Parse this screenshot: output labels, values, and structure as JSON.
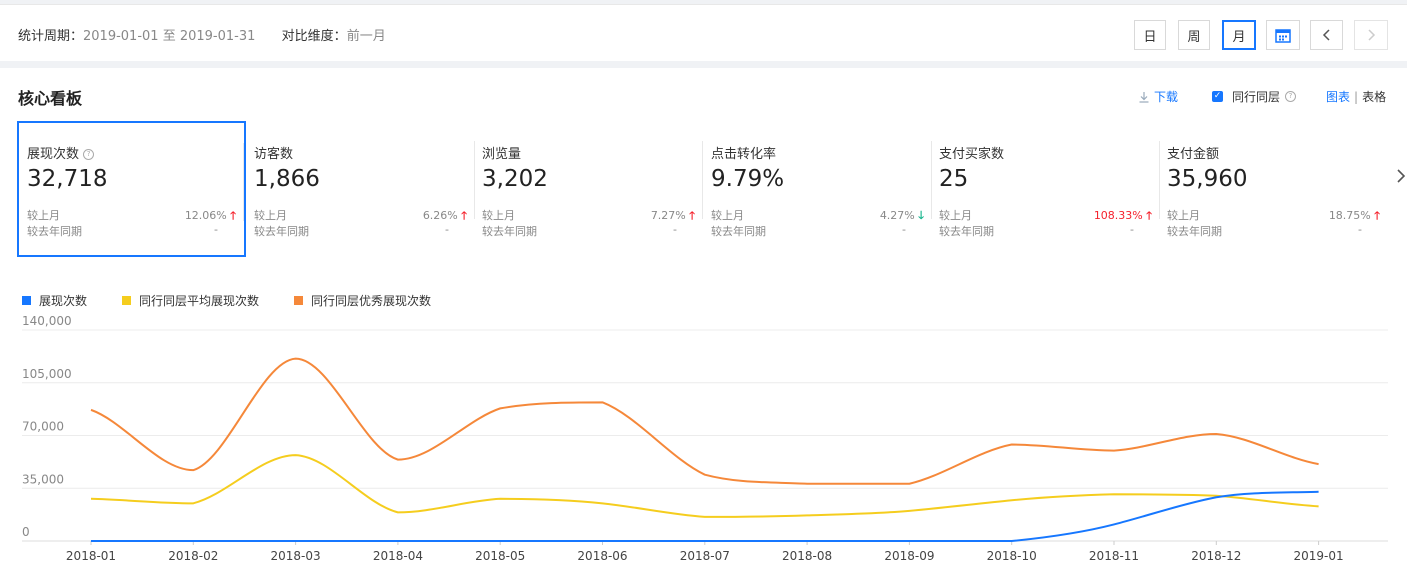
{
  "header": {
    "period_label": "统计周期：",
    "period_value": "2019-01-01 至 2019-01-31",
    "compare_label": "对比维度：",
    "compare_value": "前一月",
    "day_label": "日",
    "week_label": "周",
    "month_label": "月",
    "active_granularity": "月"
  },
  "board": {
    "title": "核心看板",
    "download_label": "下载",
    "peer_label": "同行同层",
    "peer_checked": true,
    "view_chart_label": "图表",
    "view_table_label": "表格",
    "view_separator": "|"
  },
  "metrics": [
    {
      "name": "展现次数",
      "value": "32,718",
      "help": true,
      "mom_label": "较上月",
      "mom_pct": "12.06%",
      "trend": "up",
      "yoy_label": "较去年同期",
      "yoy_val": "-"
    },
    {
      "name": "访客数",
      "value": "1,866",
      "mom_label": "较上月",
      "mom_pct": "6.26%",
      "trend": "up",
      "yoy_label": "较去年同期",
      "yoy_val": "-"
    },
    {
      "name": "浏览量",
      "value": "3,202",
      "mom_label": "较上月",
      "mom_pct": "7.27%",
      "trend": "up",
      "yoy_label": "较去年同期",
      "yoy_val": "-"
    },
    {
      "name": "点击转化率",
      "value": "9.79%",
      "mom_label": "较上月",
      "mom_pct": "4.27%",
      "trend": "down",
      "yoy_label": "较去年同期",
      "yoy_val": "-"
    },
    {
      "name": "支付买家数",
      "value": "25",
      "mom_label": "较上月",
      "mom_pct": "108.33%",
      "trend": "up",
      "highlight": true,
      "yoy_label": "较去年同期",
      "yoy_val": "-"
    },
    {
      "name": "支付金额",
      "value": "35,960",
      "mom_label": "较上月",
      "mom_pct": "18.75%",
      "trend": "up",
      "yoy_label": "较去年同期",
      "yoy_val": "-"
    }
  ],
  "colors": {
    "accent": "#1677ff",
    "up": "#f5222d",
    "down": "#13b38b",
    "series_own": "#1677ff",
    "series_avg": "#f5cd1e",
    "series_top": "#f5883a"
  },
  "chart_data": {
    "type": "line",
    "x": [
      "2018-01",
      "2018-02",
      "2018-03",
      "2018-04",
      "2018-05",
      "2018-06",
      "2018-07",
      "2018-08",
      "2018-09",
      "2018-10",
      "2018-11",
      "2018-12",
      "2019-01"
    ],
    "y_ticks": [
      "0",
      "35,000",
      "70,000",
      "105,000",
      "140,000"
    ],
    "ylim": [
      0,
      140000
    ],
    "grid": true,
    "legend_position": "top-left",
    "series": [
      {
        "name": "展现次数",
        "color": "#1677ff",
        "values": [
          0,
          0,
          0,
          0,
          0,
          0,
          0,
          0,
          0,
          0,
          11000,
          29000,
          32718
        ]
      },
      {
        "name": "同行同层平均展现次数",
        "color": "#f5cd1e",
        "values": [
          28000,
          25000,
          57000,
          19000,
          28000,
          25000,
          16000,
          17000,
          20000,
          27000,
          31000,
          30000,
          23000
        ]
      },
      {
        "name": "同行同层优秀展现次数",
        "color": "#f5883a",
        "values": [
          87000,
          47000,
          121000,
          54000,
          88000,
          92000,
          44000,
          38000,
          38000,
          64000,
          60000,
          71000,
          51000
        ]
      }
    ]
  }
}
